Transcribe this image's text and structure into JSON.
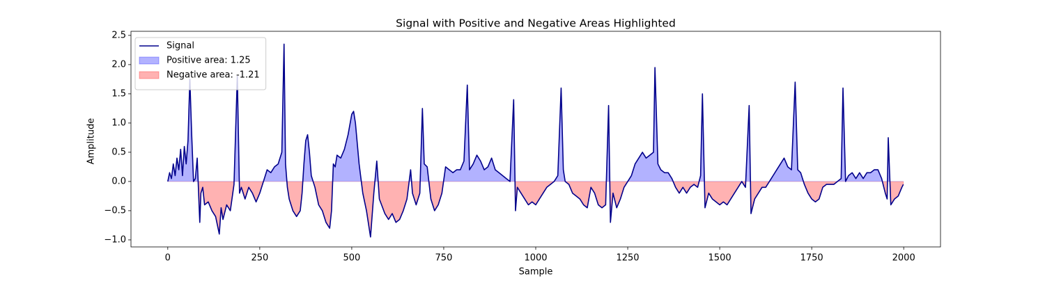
{
  "chart_data": {
    "type": "line",
    "title": "Signal with Positive and Negative Areas Highlighted",
    "x_label": "Sample",
    "y_label": "Amplitude",
    "x": [
      0,
      5,
      10,
      15,
      20,
      25,
      30,
      35,
      40,
      45,
      50,
      55,
      60,
      65,
      70,
      75,
      80,
      87,
      90,
      95,
      100,
      110,
      120,
      130,
      140,
      145,
      150,
      160,
      170,
      180,
      189,
      195,
      200,
      210,
      220,
      230,
      240,
      250,
      260,
      270,
      280,
      290,
      300,
      310,
      316,
      320,
      325,
      330,
      340,
      350,
      360,
      365,
      370,
      375,
      380,
      385,
      390,
      400,
      410,
      420,
      430,
      440,
      445,
      450,
      455,
      460,
      470,
      480,
      490,
      500,
      505,
      510,
      520,
      530,
      540,
      551,
      560,
      568,
      575,
      590,
      600,
      610,
      620,
      630,
      640,
      650,
      660,
      665,
      675,
      685,
      692,
      697,
      705,
      715,
      725,
      735,
      745,
      755,
      765,
      775,
      785,
      795,
      805,
      814,
      820,
      830,
      840,
      850,
      860,
      870,
      880,
      890,
      900,
      910,
      920,
      930,
      940,
      945,
      950,
      960,
      970,
      980,
      990,
      1000,
      1010,
      1020,
      1030,
      1040,
      1050,
      1060,
      1069,
      1075,
      1080,
      1090,
      1100,
      1110,
      1120,
      1130,
      1140,
      1150,
      1160,
      1170,
      1180,
      1190,
      1198,
      1203,
      1210,
      1220,
      1230,
      1240,
      1250,
      1260,
      1270,
      1280,
      1290,
      1300,
      1310,
      1320,
      1324,
      1332,
      1340,
      1350,
      1360,
      1370,
      1380,
      1390,
      1400,
      1410,
      1420,
      1430,
      1440,
      1448,
      1453,
      1460,
      1470,
      1480,
      1490,
      1500,
      1510,
      1520,
      1530,
      1540,
      1550,
      1560,
      1570,
      1580,
      1585,
      1595,
      1605,
      1615,
      1625,
      1635,
      1645,
      1655,
      1665,
      1675,
      1685,
      1695,
      1705,
      1712,
      1720,
      1730,
      1740,
      1750,
      1760,
      1770,
      1780,
      1790,
      1800,
      1810,
      1820,
      1830,
      1835,
      1842,
      1850,
      1860,
      1870,
      1880,
      1890,
      1900,
      1910,
      1920,
      1930,
      1940,
      1950,
      1955,
      1958,
      1965,
      1975,
      1985,
      1995,
      1999
    ],
    "series": [
      {
        "name": "Signal",
        "color": "#00008b",
        "values": [
          0.0,
          0.15,
          0.05,
          0.3,
          0.1,
          0.4,
          0.2,
          0.55,
          0.1,
          0.6,
          0.3,
          0.7,
          1.75,
          0.8,
          0.0,
          0.05,
          0.4,
          -0.7,
          -0.2,
          -0.1,
          -0.4,
          -0.35,
          -0.5,
          -0.6,
          -0.9,
          -0.45,
          -0.65,
          -0.4,
          -0.5,
          -0.05,
          1.8,
          -0.2,
          -0.1,
          -0.3,
          -0.1,
          -0.2,
          -0.35,
          -0.2,
          0.0,
          0.2,
          0.15,
          0.25,
          0.3,
          0.5,
          2.35,
          0.3,
          -0.1,
          -0.3,
          -0.5,
          -0.6,
          -0.5,
          -0.2,
          0.3,
          0.7,
          0.8,
          0.5,
          0.1,
          -0.1,
          -0.4,
          -0.5,
          -0.7,
          -0.8,
          -0.5,
          0.3,
          0.25,
          0.45,
          0.4,
          0.55,
          0.8,
          1.15,
          1.2,
          1.0,
          0.3,
          -0.2,
          -0.5,
          -0.95,
          -0.2,
          0.35,
          -0.3,
          -0.55,
          -0.65,
          -0.55,
          -0.7,
          -0.65,
          -0.5,
          -0.3,
          0.2,
          -0.2,
          -0.4,
          -0.2,
          1.25,
          0.3,
          0.25,
          -0.3,
          -0.5,
          -0.4,
          -0.2,
          0.25,
          0.2,
          0.15,
          0.2,
          0.2,
          0.35,
          1.65,
          0.2,
          0.3,
          0.45,
          0.35,
          0.2,
          0.25,
          0.4,
          0.2,
          0.15,
          0.1,
          0.05,
          0.0,
          1.4,
          -0.5,
          -0.1,
          -0.2,
          -0.3,
          -0.4,
          -0.35,
          -0.4,
          -0.3,
          -0.2,
          -0.1,
          -0.05,
          0.0,
          0.1,
          1.6,
          0.2,
          0.0,
          -0.05,
          -0.2,
          -0.25,
          -0.3,
          -0.4,
          -0.45,
          -0.1,
          -0.2,
          -0.4,
          -0.45,
          -0.4,
          1.3,
          -0.7,
          -0.2,
          -0.45,
          -0.3,
          -0.1,
          0.0,
          0.1,
          0.3,
          0.4,
          0.5,
          0.4,
          0.45,
          0.5,
          1.95,
          0.3,
          0.2,
          0.15,
          0.15,
          0.05,
          -0.1,
          -0.2,
          -0.1,
          -0.2,
          -0.1,
          -0.05,
          -0.1,
          0.1,
          1.5,
          -0.45,
          -0.2,
          -0.3,
          -0.35,
          -0.4,
          -0.35,
          -0.4,
          -0.3,
          -0.2,
          -0.1,
          0.0,
          -0.1,
          1.3,
          -0.55,
          -0.3,
          -0.2,
          -0.1,
          -0.1,
          0.0,
          0.1,
          0.2,
          0.3,
          0.4,
          0.25,
          0.2,
          1.7,
          0.2,
          0.15,
          -0.05,
          -0.2,
          -0.3,
          -0.35,
          -0.3,
          -0.1,
          -0.05,
          -0.05,
          -0.05,
          0.0,
          0.05,
          1.6,
          0.0,
          0.1,
          0.15,
          0.05,
          0.15,
          0.05,
          0.15,
          0.15,
          0.2,
          0.2,
          0.05,
          -0.2,
          -0.3,
          0.75,
          -0.4,
          -0.3,
          -0.25,
          -0.1,
          -0.05
        ]
      }
    ],
    "fills": [
      {
        "name": "Positive area: 1.25",
        "color": "#0000ff",
        "alpha": 0.3,
        "side": "positive"
      },
      {
        "name": "Negative area: -1.21",
        "color": "#ff0000",
        "alpha": 0.3,
        "side": "negative"
      }
    ],
    "xlim": [
      -100,
      2100
    ],
    "ylim": [
      -1.12,
      2.57
    ],
    "xticks": [
      0,
      250,
      500,
      750,
      1000,
      1250,
      1500,
      1750,
      2000
    ],
    "yticks": [
      {
        "value": -1.0,
        "label": "−1.0"
      },
      {
        "value": -0.5,
        "label": "−0.5"
      },
      {
        "value": 0.0,
        "label": "0.0"
      },
      0.5,
      {
        "value": 1.0,
        "label": "1.0"
      },
      1.5,
      {
        "value": 2.0,
        "label": "2.0"
      },
      2.5
    ],
    "legend": "upper left",
    "grid": false
  }
}
